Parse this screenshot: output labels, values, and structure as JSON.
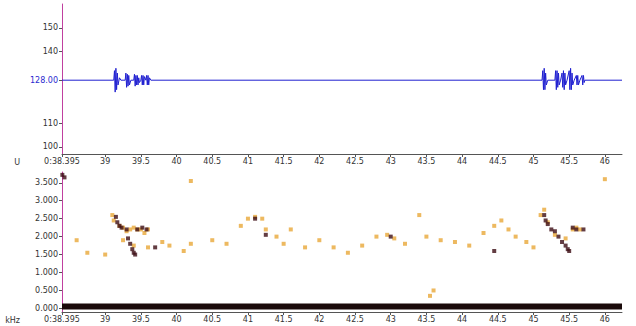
{
  "chart_data": [
    {
      "type": "line",
      "ylabel": "U",
      "grid": false,
      "xlim": [
        38.395,
        46.24
      ],
      "xticks": [
        {
          "value": 38.395,
          "label": "0:38.395"
        },
        39,
        39.5,
        40,
        40.5,
        41,
        41.5,
        42,
        42.5,
        43,
        43.5,
        44,
        44.5,
        45,
        45.5,
        46
      ],
      "ylim": [
        97,
        160
      ],
      "yticks": [
        100,
        110,
        {
          "value": 128,
          "label": "128.00"
        },
        140,
        150
      ],
      "series": [
        {
          "color": "#1f1fd0",
          "line_style": "solid",
          "points": [
            [
              38.395,
              128
            ],
            [
              39.12,
              128
            ],
            [
              39.13,
              132
            ],
            [
              39.14,
              123
            ],
            [
              39.15,
              133
            ],
            [
              39.16,
              124
            ],
            [
              39.17,
              131
            ],
            [
              39.18,
              126
            ],
            [
              39.2,
              129
            ],
            [
              39.22,
              128
            ],
            [
              39.28,
              128
            ],
            [
              39.29,
              131
            ],
            [
              39.3,
              125
            ],
            [
              39.31,
              130.5
            ],
            [
              39.32,
              125.5
            ],
            [
              39.33,
              130
            ],
            [
              39.34,
              126
            ],
            [
              39.36,
              128
            ],
            [
              39.4,
              128
            ],
            [
              39.41,
              130.5
            ],
            [
              39.42,
              125.5
            ],
            [
              39.43,
              130
            ],
            [
              39.44,
              126
            ],
            [
              39.45,
              130
            ],
            [
              39.46,
              126
            ],
            [
              39.47,
              129
            ],
            [
              39.48,
              127
            ],
            [
              39.5,
              128
            ],
            [
              39.51,
              130
            ],
            [
              39.52,
              126
            ],
            [
              39.53,
              130
            ],
            [
              39.54,
              126
            ],
            [
              39.55,
              129.5
            ],
            [
              39.57,
              128
            ],
            [
              39.58,
              130
            ],
            [
              39.59,
              126
            ],
            [
              39.6,
              130
            ],
            [
              39.61,
              126
            ],
            [
              39.62,
              129
            ],
            [
              39.64,
              128
            ],
            [
              45.12,
              128
            ],
            [
              45.13,
              132
            ],
            [
              45.14,
              124
            ],
            [
              45.15,
              133
            ],
            [
              45.16,
              124
            ],
            [
              45.17,
              131
            ],
            [
              45.18,
              126
            ],
            [
              45.2,
              128
            ],
            [
              45.3,
              128
            ],
            [
              45.31,
              132
            ],
            [
              45.32,
              124
            ],
            [
              45.33,
              132
            ],
            [
              45.34,
              125
            ],
            [
              45.35,
              131
            ],
            [
              45.36,
              126
            ],
            [
              45.38,
              128
            ],
            [
              45.4,
              131
            ],
            [
              45.41,
              125
            ],
            [
              45.42,
              132
            ],
            [
              45.43,
              124
            ],
            [
              45.44,
              131
            ],
            [
              45.45,
              126
            ],
            [
              45.47,
              128
            ],
            [
              45.5,
              132
            ],
            [
              45.51,
              124
            ],
            [
              45.52,
              133
            ],
            [
              45.53,
              124
            ],
            [
              45.54,
              131
            ],
            [
              45.55,
              126
            ],
            [
              45.57,
              128
            ],
            [
              45.6,
              130
            ],
            [
              45.61,
              126
            ],
            [
              45.62,
              130
            ],
            [
              45.63,
              126
            ],
            [
              45.65,
              128
            ],
            [
              45.68,
              130
            ],
            [
              45.69,
              126
            ],
            [
              45.7,
              130
            ],
            [
              45.71,
              127
            ],
            [
              45.72,
              128
            ],
            [
              46.24,
              128
            ]
          ]
        }
      ]
    },
    {
      "type": "scatter",
      "ylabel": "kHz",
      "grid": false,
      "xlim": [
        38.395,
        46.24
      ],
      "xticks": [
        {
          "value": 38.395,
          "label": "0:38.395"
        },
        39,
        39.5,
        40,
        40.5,
        41,
        41.5,
        42,
        42.5,
        43,
        43.5,
        44,
        44.5,
        45,
        45.5,
        46
      ],
      "ylim": [
        -0.1,
        3.8
      ],
      "yticks": [
        {
          "value": 0,
          "label": "0.000"
        },
        {
          "value": 0.5,
          "label": "0.500"
        },
        {
          "value": 1,
          "label": "1.000"
        },
        {
          "value": 1.5,
          "label": "1.500"
        },
        {
          "value": 2,
          "label": "2.000"
        },
        {
          "value": 2.5,
          "label": "2.500"
        },
        {
          "value": 3,
          "label": "3.000"
        },
        {
          "value": 3.5,
          "label": "3.500"
        }
      ],
      "series": [
        {
          "color": "#e8a838",
          "marker": "square",
          "points": [
            [
              39.1,
              2.6
            ],
            [
              39.12,
              2.45
            ],
            [
              39.2,
              2.3
            ],
            [
              39.25,
              2.25
            ],
            [
              39.3,
              2.15
            ],
            [
              39.35,
              2.2
            ],
            [
              39.4,
              2.25
            ],
            [
              39.45,
              2.2
            ],
            [
              39.5,
              2.2
            ],
            [
              39.55,
              2.1
            ],
            [
              39.6,
              2.2
            ],
            [
              39.25,
              1.9
            ],
            [
              39.4,
              1.75
            ],
            [
              39.6,
              1.7
            ],
            [
              39.8,
              1.85
            ],
            [
              39.9,
              1.75
            ],
            [
              40.1,
              1.6
            ],
            [
              40.2,
              1.8
            ],
            [
              40.5,
              1.9
            ],
            [
              40.7,
              1.8
            ],
            [
              40.9,
              2.3
            ],
            [
              41.0,
              2.5
            ],
            [
              41.1,
              2.55
            ],
            [
              41.2,
              2.5
            ],
            [
              41.25,
              2.2
            ],
            [
              41.4,
              2.0
            ],
            [
              41.5,
              1.8
            ],
            [
              41.6,
              2.2
            ],
            [
              41.8,
              1.7
            ],
            [
              42.0,
              1.9
            ],
            [
              42.2,
              1.7
            ],
            [
              42.4,
              1.55
            ],
            [
              42.6,
              1.75
            ],
            [
              42.8,
              2.0
            ],
            [
              42.95,
              2.05
            ],
            [
              43.05,
              1.95
            ],
            [
              43.2,
              1.8
            ],
            [
              43.4,
              2.6
            ],
            [
              43.5,
              2.0
            ],
            [
              43.6,
              0.5
            ],
            [
              43.55,
              0.35
            ],
            [
              43.7,
              1.9
            ],
            [
              43.9,
              1.85
            ],
            [
              44.1,
              1.75
            ],
            [
              44.3,
              2.1
            ],
            [
              44.45,
              2.3
            ],
            [
              44.55,
              2.45
            ],
            [
              44.65,
              2.2
            ],
            [
              44.75,
              2.0
            ],
            [
              44.9,
              1.85
            ],
            [
              45.0,
              1.7
            ],
            [
              45.1,
              2.6
            ],
            [
              45.15,
              2.75
            ],
            [
              45.2,
              2.4
            ],
            [
              45.3,
              2.05
            ],
            [
              45.45,
              1.95
            ],
            [
              45.55,
              2.2
            ],
            [
              45.6,
              2.25
            ],
            [
              45.65,
              2.2
            ],
            [
              46.0,
              3.6
            ],
            [
              40.2,
              3.55
            ],
            [
              38.6,
              1.9
            ],
            [
              38.75,
              1.55
            ],
            [
              39.0,
              1.5
            ]
          ]
        },
        {
          "color": "#3c0c14",
          "marker": "square",
          "points": [
            [
              38.4,
              3.72
            ],
            [
              38.43,
              3.65
            ],
            [
              39.15,
              2.55
            ],
            [
              39.17,
              2.4
            ],
            [
              39.2,
              2.3
            ],
            [
              39.23,
              2.25
            ],
            [
              39.3,
              2.2
            ],
            [
              39.32,
              1.95
            ],
            [
              39.35,
              1.8
            ],
            [
              39.38,
              1.65
            ],
            [
              39.4,
              1.55
            ],
            [
              39.42,
              1.5
            ],
            [
              39.45,
              2.2
            ],
            [
              39.52,
              2.25
            ],
            [
              39.58,
              2.2
            ],
            [
              39.7,
              1.7
            ],
            [
              41.1,
              2.5
            ],
            [
              41.25,
              2.05
            ],
            [
              43.0,
              2.0
            ],
            [
              45.15,
              2.6
            ],
            [
              45.17,
              2.45
            ],
            [
              45.2,
              2.35
            ],
            [
              45.25,
              2.2
            ],
            [
              45.3,
              2.15
            ],
            [
              45.35,
              2.0
            ],
            [
              45.4,
              1.85
            ],
            [
              45.45,
              1.75
            ],
            [
              45.48,
              1.65
            ],
            [
              45.5,
              1.6
            ],
            [
              45.55,
              2.25
            ],
            [
              45.6,
              2.2
            ],
            [
              45.7,
              2.2
            ],
            [
              44.45,
              1.6
            ]
          ]
        },
        {
          "type": "line",
          "color": "#1a0a0a",
          "line_style": "solid",
          "points": [
            [
              38.395,
              0.05
            ],
            [
              46.24,
              0.05
            ]
          ]
        }
      ]
    }
  ]
}
